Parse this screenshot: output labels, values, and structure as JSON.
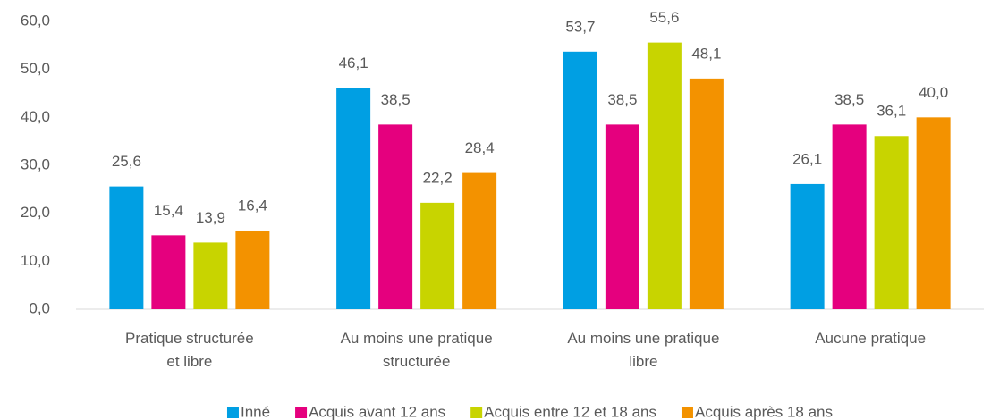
{
  "chart_data": {
    "type": "bar",
    "categories": [
      "Pratique structurée\net libre",
      "Au moins une pratique\nstructurée",
      "Au moins une pratique\nlibre",
      "Aucune pratique"
    ],
    "series": [
      {
        "name": "Inné",
        "color": "#009fe3",
        "values": [
          25.6,
          46.1,
          53.7,
          26.1
        ],
        "value_labels": [
          "25,6",
          "46,1",
          "53,7",
          "26,1"
        ]
      },
      {
        "name": "Acquis avant 12 ans",
        "color": "#e5007e",
        "values": [
          15.4,
          38.5,
          38.5,
          38.5
        ],
        "value_labels": [
          "15,4",
          "38,5",
          "38,5",
          "38,5"
        ]
      },
      {
        "name": "Acquis entre 12 et 18 ans",
        "color": "#c8d400",
        "values": [
          13.9,
          22.2,
          55.6,
          36.1
        ],
        "value_labels": [
          "13,9",
          "22,2",
          "55,6",
          "36,1"
        ]
      },
      {
        "name": "Acquis après 18 ans",
        "color": "#f39200",
        "values": [
          16.4,
          28.4,
          48.1,
          40.0
        ],
        "value_labels": [
          "16,4",
          "28,4",
          "48,1",
          "40,0"
        ]
      }
    ],
    "ylim": [
      0,
      60
    ],
    "yticks": [
      {
        "value": 0,
        "label": "0,0"
      },
      {
        "value": 10,
        "label": "10,0"
      },
      {
        "value": 20,
        "label": "20,0"
      },
      {
        "value": 30,
        "label": "30,0"
      },
      {
        "value": 40,
        "label": "40,0"
      },
      {
        "value": 50,
        "label": "50,0"
      },
      {
        "value": 60,
        "label": "60,0"
      }
    ],
    "grid": false,
    "legend": "bottom"
  }
}
